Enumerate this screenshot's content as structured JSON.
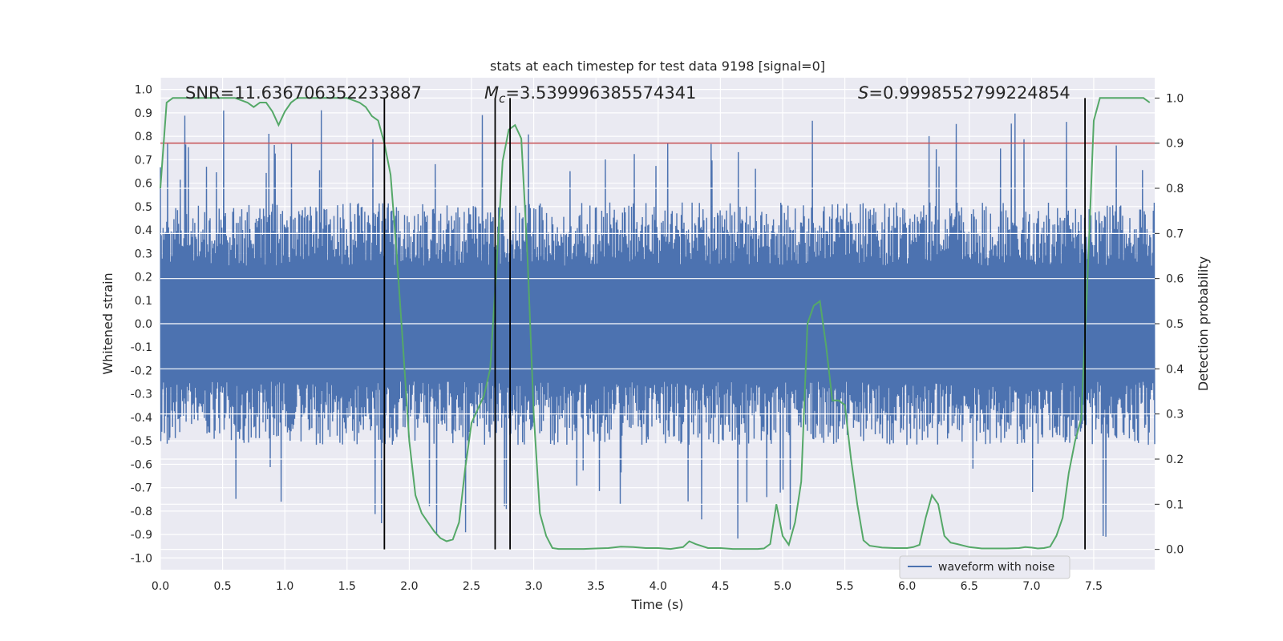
{
  "chart_data": {
    "type": "line",
    "title": "stats at each timestep for test data 9198 [signal=0]",
    "xlabel": "Time (s)",
    "ylabel": "Whitened strain",
    "y2label": "Detection probability",
    "xlim": [
      0.0,
      7.99
    ],
    "ylim": [
      -1.05,
      1.05
    ],
    "y2lim": [
      -0.045,
      1.045
    ],
    "x_ticks": [
      0.0,
      0.5,
      1.0,
      1.5,
      2.0,
      2.5,
      3.0,
      3.5,
      4.0,
      4.5,
      5.0,
      5.5,
      6.0,
      6.5,
      7.0,
      7.5
    ],
    "y_ticks": [
      -1.0,
      -0.9,
      -0.8,
      -0.7,
      -0.6,
      -0.5,
      -0.4,
      -0.3,
      -0.2,
      -0.1,
      0.0,
      0.1,
      0.2,
      0.3,
      0.4,
      0.5,
      0.6,
      0.7,
      0.8,
      0.9,
      1.0
    ],
    "y2_ticks": [
      0.0,
      0.1,
      0.2,
      0.3,
      0.4,
      0.5,
      0.6,
      0.7,
      0.8,
      0.9,
      1.0
    ],
    "grid": true,
    "legend_position": "lower-right",
    "annotations": {
      "snr": "SNR=11.636706352233887",
      "mc_sym": "M",
      "mc_sub": "c",
      "mc_val": "=3.539996385574341",
      "s_sym": "S",
      "s_val": "=0.9998552799224854"
    },
    "series": [
      {
        "name": "waveform with noise",
        "axis": "left",
        "color": "#4c72b0",
        "style": "noise",
        "amplitude_typical": 0.45,
        "amplitude_max": 1.0,
        "x_range": [
          0.0,
          7.99
        ]
      },
      {
        "axis": "right",
        "color": "#55a868",
        "x": [
          0.0,
          0.05,
          0.1,
          0.15,
          0.2,
          0.3,
          0.4,
          0.5,
          0.6,
          0.7,
          0.75,
          0.8,
          0.85,
          0.9,
          0.95,
          1.0,
          1.05,
          1.1,
          1.15,
          1.2,
          1.3,
          1.4,
          1.5,
          1.6,
          1.65,
          1.7,
          1.75,
          1.8,
          1.85,
          1.9,
          1.95,
          2.0,
          2.05,
          2.1,
          2.15,
          2.2,
          2.25,
          2.3,
          2.35,
          2.4,
          2.45,
          2.5,
          2.55,
          2.6,
          2.65,
          2.7,
          2.75,
          2.8,
          2.85,
          2.9,
          2.95,
          3.0,
          3.05,
          3.1,
          3.15,
          3.2,
          3.3,
          3.4,
          3.5,
          3.6,
          3.7,
          3.8,
          3.9,
          4.0,
          4.1,
          4.2,
          4.25,
          4.3,
          4.4,
          4.5,
          4.6,
          4.7,
          4.8,
          4.85,
          4.9,
          4.95,
          5.0,
          5.05,
          5.1,
          5.15,
          5.2,
          5.25,
          5.3,
          5.35,
          5.4,
          5.45,
          5.5,
          5.55,
          5.6,
          5.65,
          5.7,
          5.8,
          5.9,
          6.0,
          6.05,
          6.1,
          6.15,
          6.2,
          6.25,
          6.3,
          6.35,
          6.4,
          6.5,
          6.6,
          6.7,
          6.8,
          6.9,
          6.95,
          7.0,
          7.05,
          7.1,
          7.15,
          7.2,
          7.25,
          7.3,
          7.35,
          7.4,
          7.45,
          7.5,
          7.55,
          7.6,
          7.7,
          7.8,
          7.85,
          7.9,
          7.95
        ],
        "values": [
          0.8,
          0.99,
          1.0,
          1.0,
          1.0,
          1.0,
          1.0,
          1.0,
          1.0,
          0.99,
          0.98,
          0.99,
          0.99,
          0.97,
          0.94,
          0.97,
          0.99,
          1.0,
          1.0,
          1.0,
          1.0,
          1.0,
          1.0,
          0.99,
          0.98,
          0.96,
          0.95,
          0.9,
          0.83,
          0.65,
          0.45,
          0.24,
          0.12,
          0.08,
          0.06,
          0.04,
          0.025,
          0.018,
          0.022,
          0.06,
          0.18,
          0.28,
          0.31,
          0.34,
          0.4,
          0.62,
          0.86,
          0.93,
          0.94,
          0.91,
          0.65,
          0.3,
          0.08,
          0.03,
          0.003,
          0.001,
          0.001,
          0.001,
          0.002,
          0.003,
          0.006,
          0.005,
          0.003,
          0.003,
          0.001,
          0.005,
          0.018,
          0.012,
          0.003,
          0.003,
          0.001,
          0.001,
          0.001,
          0.002,
          0.012,
          0.1,
          0.03,
          0.01,
          0.06,
          0.15,
          0.5,
          0.54,
          0.55,
          0.45,
          0.33,
          0.33,
          0.32,
          0.2,
          0.1,
          0.02,
          0.008,
          0.004,
          0.003,
          0.003,
          0.005,
          0.01,
          0.07,
          0.12,
          0.1,
          0.03,
          0.015,
          0.012,
          0.005,
          0.002,
          0.002,
          0.002,
          0.003,
          0.005,
          0.004,
          0.002,
          0.003,
          0.006,
          0.03,
          0.07,
          0.17,
          0.24,
          0.29,
          0.6,
          0.95,
          1.0,
          1.0,
          1.0,
          1.0,
          1.0,
          1.0,
          0.99
        ]
      }
    ],
    "threshold_line": {
      "axis": "right",
      "value": 0.9,
      "color": "#c44e52"
    },
    "vertical_lines": [
      1.8,
      2.69,
      2.81,
      7.43
    ]
  }
}
